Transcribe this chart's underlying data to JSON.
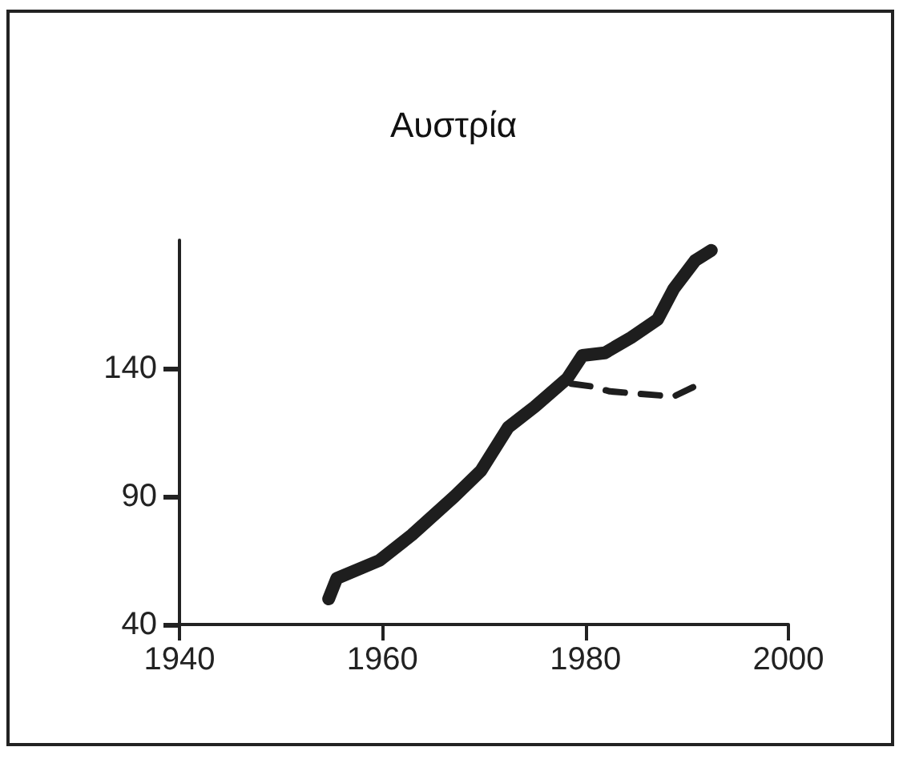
{
  "chart_data": {
    "type": "line",
    "title": "Αυστρία",
    "xlim": [
      1940,
      2000
    ],
    "xticks": [
      1940,
      1960,
      1980,
      2000
    ],
    "ylim": [
      40,
      190
    ],
    "yticks": [
      40,
      90,
      140
    ],
    "grid": false,
    "marker": "none",
    "series": [
      {
        "color": "#1e1e1e",
        "line_style": "solid",
        "x": [
          1954.7,
          1955.5,
          1959.7,
          1962.9,
          1967.1,
          1969.7,
          1972.4,
          1975,
          1978.2,
          1979.7,
          1981.9,
          1984.5,
          1987.1,
          1988.7,
          1990.8,
          1992.4
        ],
        "values": [
          50,
          58,
          65,
          75,
          90,
          100,
          117,
          125,
          136,
          145,
          146,
          152,
          159,
          171,
          182,
          186
        ]
      },
      {
        "color": "#1e1e1e",
        "line_style": "dashed",
        "x": [
          1978.6,
          1980.5,
          1982.4,
          1985.4,
          1988.7,
          1990.8
        ],
        "values": [
          134,
          133,
          131,
          130,
          129,
          133
        ]
      }
    ]
  }
}
